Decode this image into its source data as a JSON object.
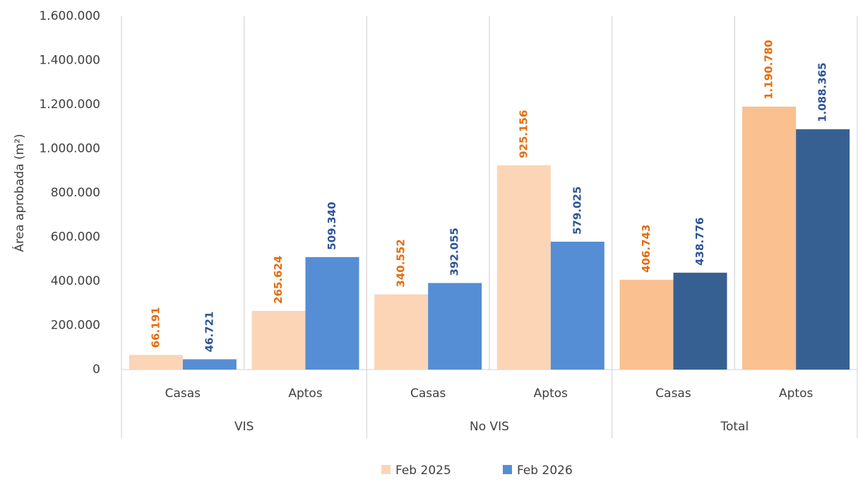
{
  "chart_data": {
    "type": "bar",
    "y_label": "Área aprobada (m²)",
    "categories": [
      "Casas",
      "Aptos",
      "Casas",
      "Aptos",
      "Casas",
      "Aptos"
    ],
    "groups": [
      "VIS",
      "No VIS",
      "Total"
    ],
    "series": [
      {
        "name": "Feb 2025",
        "color": "#fbd5b5",
        "colors": [
          "#fbd5b5",
          "#fbd5b5",
          "#fbd5b5",
          "#fbd5b5",
          "#fac090",
          "#fac090"
        ],
        "label_color": "#e46c0a",
        "values": [
          66191,
          265624,
          340552,
          925156,
          406743,
          1190780
        ],
        "value_labels": [
          "66.191",
          "265.624",
          "340.552",
          "925.156",
          "406.743",
          "1.190.780"
        ]
      },
      {
        "name": "Feb 2026",
        "color": "#558ed5",
        "colors": [
          "#558ed5",
          "#558ed5",
          "#558ed5",
          "#558ed5",
          "#376092",
          "#376092"
        ],
        "label_color": "#2f5496",
        "values": [
          46721,
          509340,
          392055,
          579025,
          438776,
          1088365
        ],
        "value_labels": [
          "46.721",
          "509.340",
          "392.055",
          "579.025",
          "438.776",
          "1.088.365"
        ]
      }
    ],
    "ylim": [
      0,
      1600000
    ],
    "yticks": [
      0,
      {
        "value": 200000,
        "label": "200.000"
      },
      {
        "value": 400000,
        "label": "400.000"
      },
      {
        "value": 600000,
        "label": "600.000"
      },
      {
        "value": 800000,
        "label": "800.000"
      },
      {
        "value": 1000000,
        "label": "1.000.000"
      },
      {
        "value": 1200000,
        "label": "1.200.000"
      },
      {
        "value": 1400000,
        "label": "1.400.000"
      },
      {
        "value": 1600000,
        "label": "1.600.000"
      }
    ],
    "legend": "bottom"
  }
}
